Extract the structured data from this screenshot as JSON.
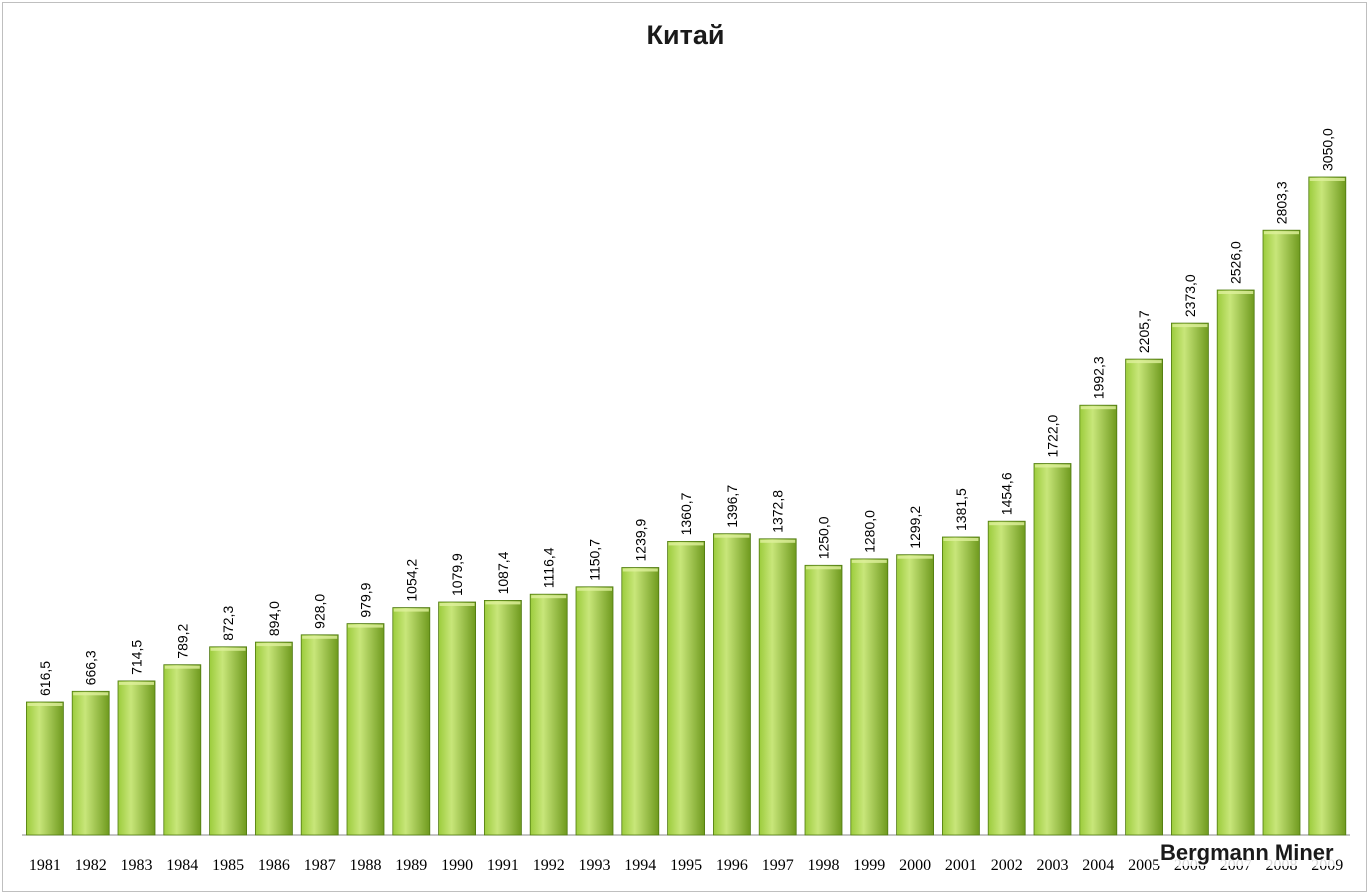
{
  "chart_data": {
    "type": "bar",
    "title": "Китай",
    "xlabel": "",
    "ylabel": "",
    "ylim": [
      0,
      3300
    ],
    "grid": false,
    "legend": "none",
    "colors": {
      "bar_light": "#c8e67a",
      "bar_mid": "#9ccc3c",
      "bar_dark": "#6f9a1e",
      "bar_edge": "#4f7a10"
    },
    "categories": [
      "1981",
      "1982",
      "1983",
      "1984",
      "1985",
      "1986",
      "1987",
      "1988",
      "1989",
      "1990",
      "1991",
      "1992",
      "1993",
      "1994",
      "1995",
      "1996",
      "1997",
      "1998",
      "1999",
      "2000",
      "2001",
      "2002",
      "2003",
      "2004",
      "2005",
      "2006",
      "2007",
      "2008",
      "2009"
    ],
    "values": [
      616.5,
      666.3,
      714.5,
      789.2,
      872.3,
      894.0,
      928.0,
      979.9,
      1054.2,
      1079.9,
      1087.4,
      1116.4,
      1150.7,
      1239.9,
      1360.7,
      1396.7,
      1372.8,
      1250.0,
      1280.0,
      1299.2,
      1381.5,
      1454.6,
      1722.0,
      1992.3,
      2205.7,
      2373.0,
      2526.0,
      2803.3,
      3050.0
    ],
    "data_labels": [
      "616,5",
      "666,3",
      "714,5",
      "789,2",
      "872,3",
      "894,0",
      "928,0",
      "979,9",
      "1054,2",
      "1079,9",
      "1087,4",
      "1116,4",
      "1150,7",
      "1239,9",
      "1360,7",
      "1396,7",
      "1372,8",
      "1250,0",
      "1280,0",
      "1299,2",
      "1381,5",
      "1454,6",
      "1722,0",
      "1992,3",
      "2205,7",
      "2373,0",
      "2526,0",
      "2803,3",
      "3050,0"
    ]
  },
  "watermark": "Bergmann Miner"
}
